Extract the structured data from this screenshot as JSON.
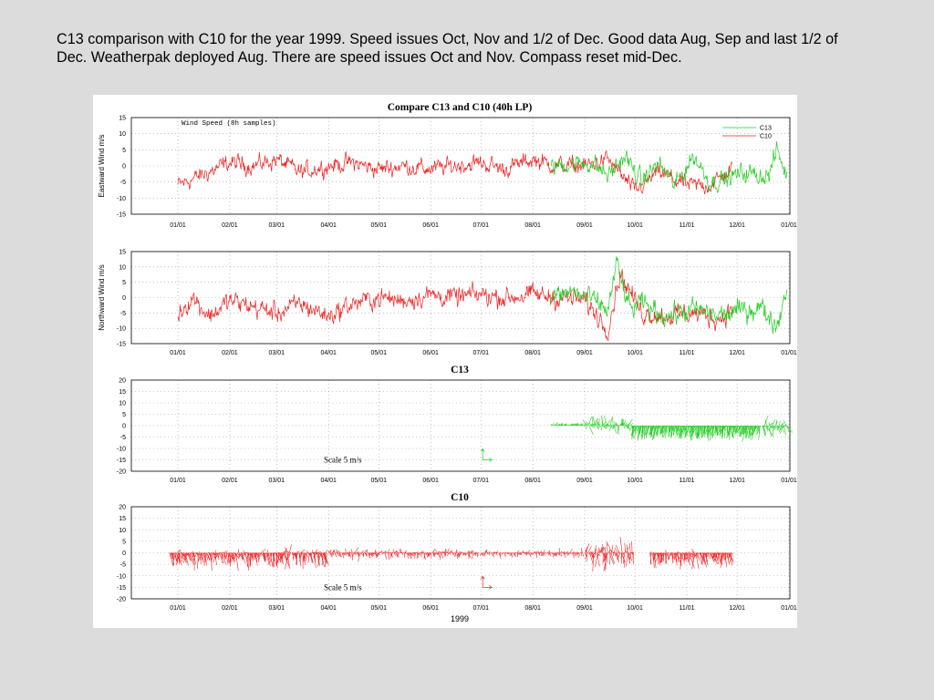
{
  "caption": "C13 comparison with C10 for the year 1999. Speed issues Oct, Nov and 1/2 of Dec. Good data Aug, Sep and last 1/2 of Dec. Weatherpak deployed Aug. There are speed issues Oct and Nov. Compass reset mid-Dec.",
  "colors": {
    "C13": "#22cc22",
    "C10": "#ee2222",
    "grid": "#9a9a9a",
    "background": "#dcdcdc"
  },
  "chart_data": [
    {
      "type": "line",
      "title": "Compare C13 and C10 (40h LP)",
      "annotation": "Wind Speed (8h samples)",
      "ylabel": "Eastward Wind m/s",
      "ylim": [
        -15,
        15
      ],
      "yticks": [
        15,
        10,
        5,
        0,
        -5,
        -10,
        -15
      ],
      "x_ticks": [
        "01/01",
        "02/01",
        "03/01",
        "04/01",
        "05/01",
        "06/01",
        "07/01",
        "08/01",
        "09/01",
        "10/01",
        "11/01",
        "12/01",
        "01/01"
      ],
      "x_range": [
        "1999-01-01",
        "2000-01-01"
      ],
      "legend": {
        "position": "top-right",
        "entries": [
          "C13",
          "C10"
        ]
      },
      "grid": true,
      "series": [
        {
          "name": "C13",
          "x": [
            "1999-08-12",
            "1999-08-25",
            "1999-09-05",
            "1999-09-15",
            "1999-09-25",
            "1999-10-05",
            "1999-10-15",
            "1999-10-25",
            "1999-11-05",
            "1999-11-15",
            "1999-11-25",
            "1999-12-05",
            "1999-12-15",
            "1999-12-20",
            "1999-12-25",
            "1999-12-31"
          ],
          "values": [
            0,
            0.5,
            1,
            -3,
            3,
            -5,
            1,
            -6,
            3,
            -5,
            -4,
            -2,
            -3,
            -3,
            5,
            -4
          ]
        },
        {
          "name": "C10",
          "x": [
            "1999-01-01",
            "1999-01-15",
            "1999-02-01",
            "1999-02-15",
            "1999-03-01",
            "1999-03-15",
            "1999-04-01",
            "1999-04-15",
            "1999-05-01",
            "1999-05-15",
            "1999-06-01",
            "1999-06-15",
            "1999-07-01",
            "1999-07-15",
            "1999-08-01",
            "1999-08-15",
            "1999-09-01",
            "1999-09-15",
            "1999-10-01",
            "1999-10-15",
            "1999-11-01",
            "1999-11-15",
            "1999-11-28"
          ],
          "values": [
            -6,
            -3,
            1,
            0,
            2,
            -2,
            0,
            1,
            -1,
            0,
            -1,
            0,
            1,
            -1,
            2,
            0,
            0,
            2,
            -8,
            -2,
            -6,
            -6,
            -1
          ]
        }
      ]
    },
    {
      "type": "line",
      "ylabel": "Northward Wind m/s",
      "ylim": [
        -15,
        15
      ],
      "yticks": [
        15,
        10,
        5,
        0,
        -5,
        -10,
        -15
      ],
      "x_ticks": [
        "01/01",
        "02/01",
        "03/01",
        "04/01",
        "05/01",
        "06/01",
        "07/01",
        "08/01",
        "09/01",
        "10/01",
        "11/01",
        "12/01",
        "01/01"
      ],
      "x_range": [
        "1999-01-01",
        "2000-01-01"
      ],
      "grid": true,
      "series": [
        {
          "name": "C13",
          "x": [
            "1999-08-12",
            "1999-08-25",
            "1999-09-05",
            "1999-09-15",
            "1999-09-20",
            "1999-09-28",
            "1999-10-05",
            "1999-10-20",
            "1999-11-05",
            "1999-11-20",
            "1999-12-05",
            "1999-12-15",
            "1999-12-25",
            "1999-12-31"
          ],
          "values": [
            0,
            2,
            -1,
            -4,
            11,
            -4,
            -2,
            -6,
            -4,
            -6,
            -4,
            -3,
            -9,
            4
          ]
        },
        {
          "name": "C10",
          "x": [
            "1999-01-01",
            "1999-01-10",
            "1999-01-20",
            "1999-02-01",
            "1999-02-15",
            "1999-03-01",
            "1999-03-15",
            "1999-04-01",
            "1999-04-15",
            "1999-05-01",
            "1999-05-15",
            "1999-06-01",
            "1999-06-15",
            "1999-07-01",
            "1999-07-15",
            "1999-08-01",
            "1999-08-15",
            "1999-09-01",
            "1999-09-15",
            "1999-09-22",
            "1999-10-05",
            "1999-10-20",
            "1999-11-05",
            "1999-11-20",
            "1999-11-28"
          ],
          "values": [
            -5,
            0,
            -6,
            -1,
            -3,
            -5,
            -2,
            -6,
            -2,
            0,
            -1,
            1,
            0,
            1,
            0,
            1,
            0,
            -1,
            -10,
            8,
            -5,
            -6,
            -5,
            -7,
            -4
          ]
        }
      ]
    },
    {
      "type": "vector",
      "title": "C13",
      "scale_label": "Scale 5 m/s",
      "ylim": [
        -20,
        20
      ],
      "yticks": [
        20,
        15,
        10,
        5,
        0,
        -5,
        -10,
        -15,
        -20
      ],
      "x_ticks": [
        "01/01",
        "02/01",
        "03/01",
        "04/01",
        "05/01",
        "06/01",
        "07/01",
        "08/01",
        "09/01",
        "10/01",
        "11/01",
        "12/01",
        "01/01"
      ],
      "x_range": [
        "1999-01-01",
        "2000-01-01"
      ],
      "data_range": [
        "1999-08-12",
        "1999-12-31"
      ],
      "grid": true
    },
    {
      "type": "vector",
      "title": "C10",
      "scale_label": "Scale 5 m/s",
      "xlabel": "1999",
      "ylim": [
        -20,
        20
      ],
      "yticks": [
        20,
        15,
        10,
        5,
        0,
        -5,
        -10,
        -15,
        -20
      ],
      "x_ticks": [
        "01/01",
        "02/01",
        "03/01",
        "04/01",
        "05/01",
        "06/01",
        "07/01",
        "08/01",
        "09/01",
        "10/01",
        "11/01",
        "12/01",
        "01/01"
      ],
      "x_range": [
        "1999-01-01",
        "2000-01-01"
      ],
      "data_range": [
        "1998-12-27",
        "1999-11-28"
      ],
      "gap": [
        "1999-10-01",
        "1999-10-10"
      ],
      "grid": true
    }
  ]
}
